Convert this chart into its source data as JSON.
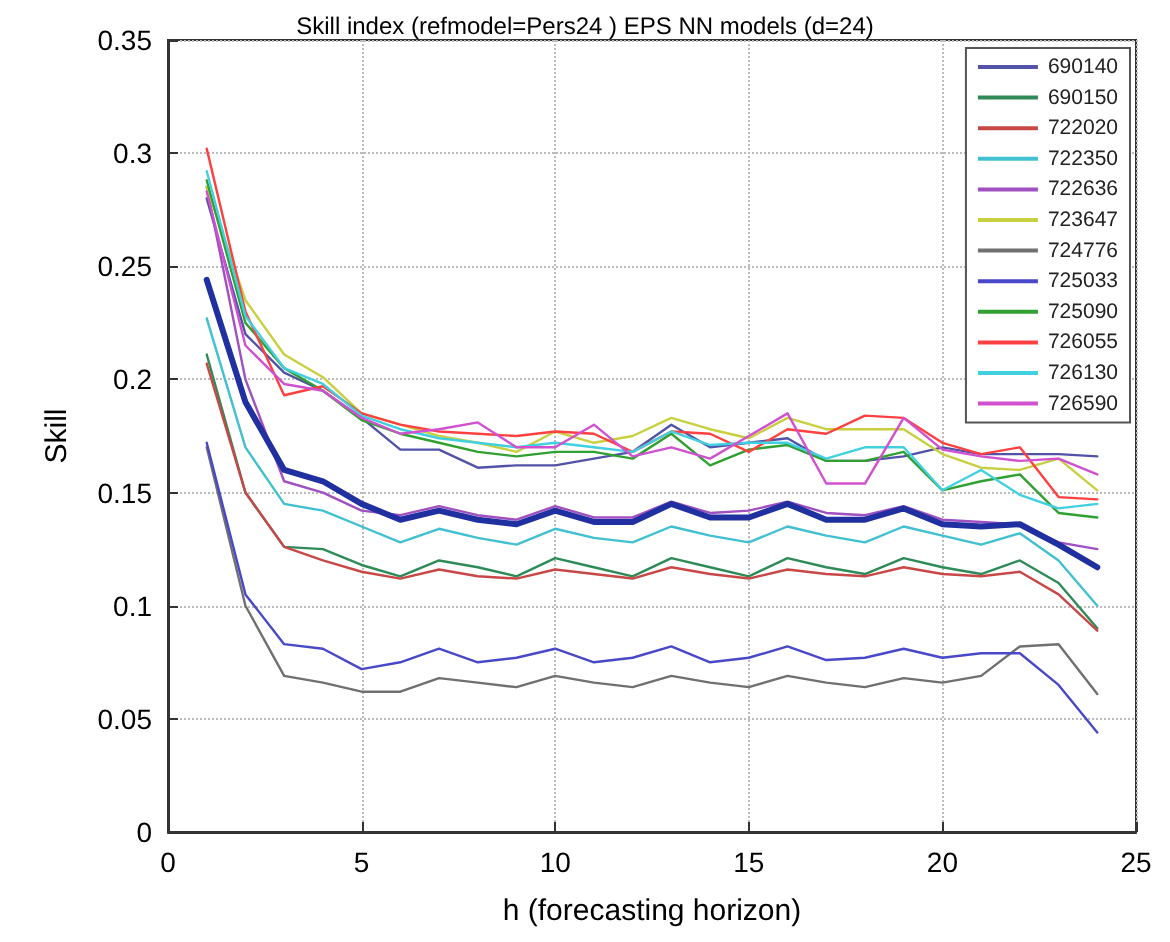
{
  "chart_data": {
    "type": "line",
    "title": "Skill index (refmodel=Pers24 ) EPS NN models (d=24)",
    "xlabel": "h (forecasting horizon)",
    "ylabel": "Skill",
    "x": [
      1,
      2,
      3,
      4,
      5,
      6,
      7,
      8,
      9,
      10,
      11,
      12,
      13,
      14,
      15,
      16,
      17,
      18,
      19,
      20,
      21,
      22,
      23,
      24
    ],
    "xlim": [
      0,
      25
    ],
    "xticks": [
      0,
      5,
      10,
      15,
      20,
      25
    ],
    "ylim": [
      0,
      0.35
    ],
    "yticks": [
      0,
      0.05,
      0.1,
      0.15,
      0.2,
      0.25,
      0.3,
      0.35
    ],
    "grid": true,
    "legend": "top right",
    "marker": "none",
    "line_style": "solid",
    "series": [
      {
        "name": "690140",
        "color": "#5252a8",
        "values": [
          0.28,
          0.22,
          0.203,
          0.195,
          0.183,
          0.169,
          0.169,
          0.161,
          0.162,
          0.162,
          0.165,
          0.168,
          0.18,
          0.17,
          0.172,
          0.174,
          0.164,
          0.164,
          0.166,
          0.17,
          0.167,
          0.167,
          0.167,
          0.166
        ]
      },
      {
        "name": "690150",
        "color": "#2e8b57",
        "values": [
          0.211,
          0.15,
          0.126,
          0.125,
          0.118,
          0.113,
          0.12,
          0.117,
          0.113,
          0.121,
          0.117,
          0.113,
          0.121,
          0.117,
          0.113,
          0.121,
          0.117,
          0.114,
          0.121,
          0.117,
          0.114,
          0.12,
          0.11,
          0.09
        ]
      },
      {
        "name": "722020",
        "color": "#c84848",
        "values": [
          0.207,
          0.15,
          0.126,
          0.12,
          0.115,
          0.112,
          0.116,
          0.113,
          0.112,
          0.116,
          0.114,
          0.112,
          0.117,
          0.114,
          0.112,
          0.116,
          0.114,
          0.113,
          0.117,
          0.114,
          0.113,
          0.115,
          0.105,
          0.089
        ]
      },
      {
        "name": "722350",
        "color": "#40c0d0",
        "values": [
          0.227,
          0.17,
          0.145,
          0.142,
          0.135,
          0.128,
          0.134,
          0.13,
          0.127,
          0.134,
          0.13,
          0.128,
          0.135,
          0.131,
          0.128,
          0.135,
          0.131,
          0.128,
          0.135,
          0.131,
          0.127,
          0.132,
          0.12,
          0.1
        ]
      },
      {
        "name": "722636",
        "color": "#a050c0",
        "values": [
          0.285,
          0.2,
          0.155,
          0.15,
          0.142,
          0.14,
          0.144,
          0.14,
          0.138,
          0.144,
          0.139,
          0.139,
          0.146,
          0.141,
          0.142,
          0.146,
          0.141,
          0.14,
          0.144,
          0.138,
          0.137,
          0.136,
          0.128,
          0.125
        ]
      },
      {
        "name": "723647",
        "color": "#c8d040",
        "values": [
          0.285,
          0.235,
          0.211,
          0.201,
          0.185,
          0.18,
          0.175,
          0.172,
          0.168,
          0.177,
          0.172,
          0.175,
          0.183,
          0.178,
          0.174,
          0.183,
          0.178,
          0.178,
          0.178,
          0.167,
          0.161,
          0.16,
          0.165,
          0.151
        ]
      },
      {
        "name": "724776",
        "color": "#707070",
        "values": [
          0.17,
          0.1,
          0.069,
          0.066,
          0.062,
          0.062,
          0.068,
          0.066,
          0.064,
          0.069,
          0.066,
          0.064,
          0.069,
          0.066,
          0.064,
          0.069,
          0.066,
          0.064,
          0.068,
          0.066,
          0.069,
          0.082,
          0.083,
          0.061
        ]
      },
      {
        "name": "725033",
        "color": "#4848c8",
        "values": [
          0.172,
          0.105,
          0.083,
          0.081,
          0.072,
          0.075,
          0.081,
          0.075,
          0.077,
          0.081,
          0.075,
          0.077,
          0.082,
          0.075,
          0.077,
          0.082,
          0.076,
          0.077,
          0.081,
          0.077,
          0.079,
          0.079,
          0.065,
          0.044
        ]
      },
      {
        "name": "725090",
        "color": "#30a030",
        "values": [
          0.288,
          0.225,
          0.205,
          0.195,
          0.182,
          0.176,
          0.172,
          0.168,
          0.166,
          0.168,
          0.168,
          0.165,
          0.176,
          0.162,
          0.169,
          0.171,
          0.164,
          0.164,
          0.168,
          0.151,
          0.155,
          0.158,
          0.141,
          0.139
        ]
      },
      {
        "name": "726055",
        "color": "#ff4040",
        "values": [
          0.302,
          0.23,
          0.193,
          0.197,
          0.185,
          0.18,
          0.177,
          0.176,
          0.175,
          0.177,
          0.176,
          0.168,
          0.177,
          0.176,
          0.168,
          0.178,
          0.176,
          0.184,
          0.183,
          0.172,
          0.167,
          0.17,
          0.148,
          0.147
        ]
      },
      {
        "name": "726130",
        "color": "#40d0e0",
        "values": [
          0.292,
          0.228,
          0.205,
          0.198,
          0.184,
          0.178,
          0.174,
          0.172,
          0.17,
          0.172,
          0.17,
          0.168,
          0.177,
          0.171,
          0.172,
          0.172,
          0.165,
          0.17,
          0.17,
          0.151,
          0.16,
          0.149,
          0.143,
          0.145
        ]
      },
      {
        "name": "726590",
        "color": "#d050d0",
        "values": [
          0.283,
          0.215,
          0.198,
          0.195,
          0.183,
          0.176,
          0.178,
          0.181,
          0.17,
          0.17,
          0.18,
          0.166,
          0.17,
          0.165,
          0.175,
          0.185,
          0.154,
          0.154,
          0.183,
          0.169,
          0.166,
          0.164,
          0.165,
          0.158
        ]
      },
      {
        "color": "#2030a0",
        "values": [
          0.244,
          0.19,
          0.16,
          0.155,
          0.145,
          0.138,
          0.142,
          0.138,
          0.136,
          0.142,
          0.137,
          0.137,
          0.145,
          0.139,
          0.139,
          0.145,
          0.138,
          0.138,
          0.143,
          0.136,
          0.135,
          0.136,
          0.127,
          0.117
        ]
      }
    ]
  }
}
